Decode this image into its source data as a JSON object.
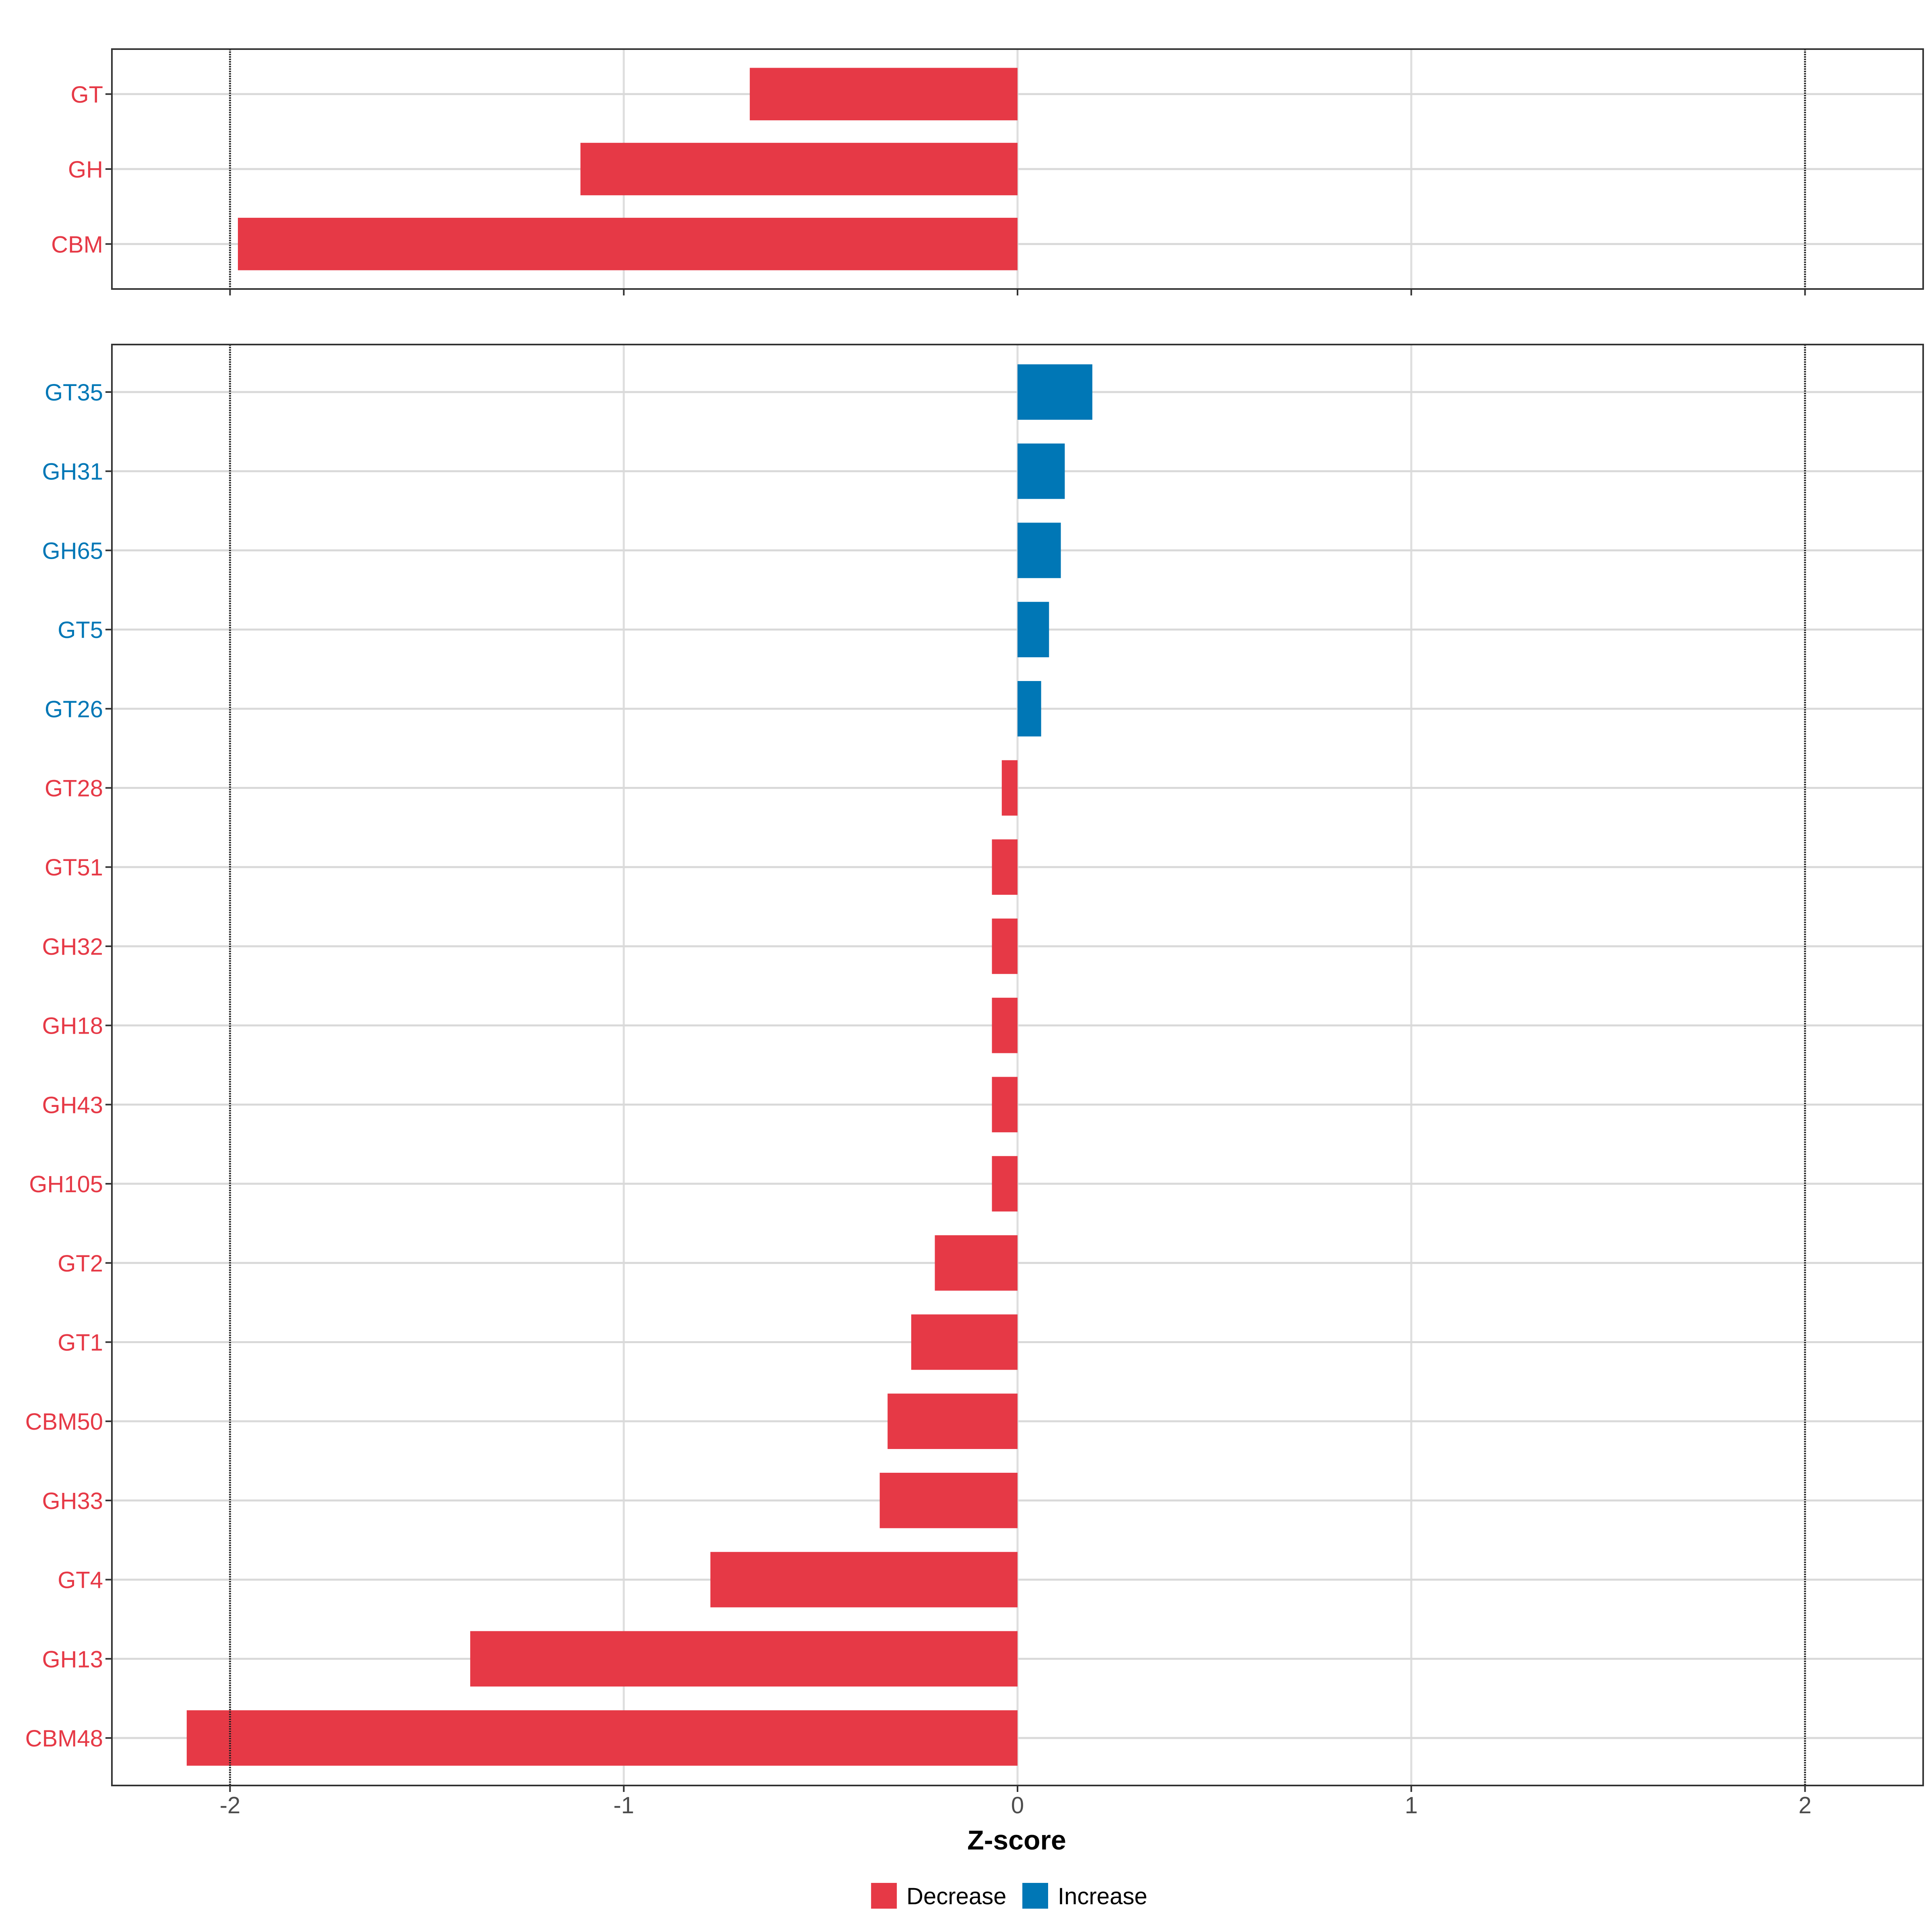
{
  "chart_data": [
    {
      "type": "bar",
      "orientation": "horizontal",
      "categories": [
        "GT",
        "GH",
        "CBM"
      ],
      "values": [
        -0.68,
        -1.11,
        -1.98
      ],
      "xlim": [
        -2.3,
        2.3
      ],
      "reference_lines": [
        -2,
        2
      ],
      "grid": true
    },
    {
      "type": "bar",
      "orientation": "horizontal",
      "categories": [
        "GT35",
        "GH31",
        "GH65",
        "GT5",
        "GT26",
        "GT28",
        "GT51",
        "GH32",
        "GH18",
        "GH43",
        "GH105",
        "GT2",
        "GT1",
        "CBM50",
        "GH33",
        "GT4",
        "GH13",
        "CBM48"
      ],
      "values": [
        0.19,
        0.12,
        0.11,
        0.08,
        0.06,
        -0.04,
        -0.065,
        -0.065,
        -0.065,
        -0.065,
        -0.065,
        -0.21,
        -0.27,
        -0.33,
        -0.35,
        -0.78,
        -1.39,
        -2.11
      ],
      "xlim": [
        -2.3,
        2.3
      ],
      "xticks": [
        -2,
        -1,
        0,
        1,
        2
      ],
      "tick_labels": [
        "-2",
        "-1",
        "0",
        "1",
        "2"
      ],
      "xlabel": "Z-score",
      "reference_lines": [
        -2,
        2
      ],
      "grid": true
    }
  ],
  "legend": {
    "placement": "bottom",
    "items": [
      {
        "label": "Decrease",
        "color": "#E63946"
      },
      {
        "label": "Increase",
        "color": "#0077B6"
      }
    ]
  },
  "colors": {
    "decrease": "#E63946",
    "increase": "#0077B6"
  }
}
